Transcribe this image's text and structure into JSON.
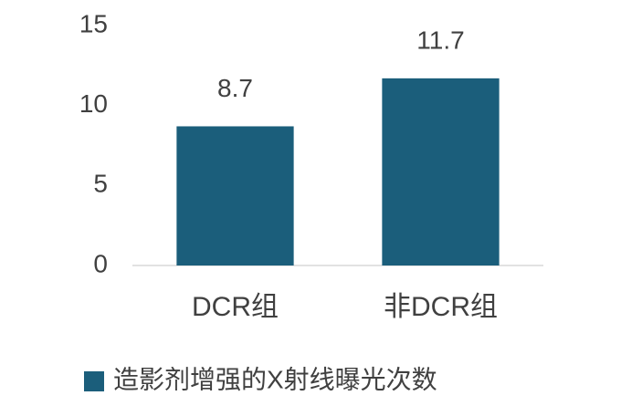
{
  "chart_data": {
    "type": "bar",
    "categories": [
      "DCR组",
      "非DCR组"
    ],
    "series": [
      {
        "name": "造影剂增强的X射线曝光次数",
        "color": "#1b5e7b",
        "values": [
          8.7,
          11.7
        ]
      }
    ],
    "ylim": [
      0,
      15
    ],
    "yticks": [
      0,
      5,
      10,
      15
    ],
    "grid": false,
    "legend": "bottom"
  }
}
